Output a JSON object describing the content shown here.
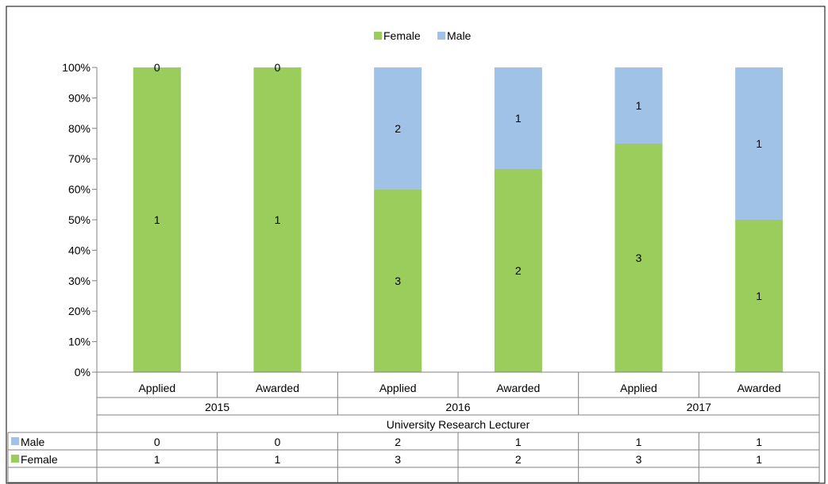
{
  "chart_data": {
    "type": "bar",
    "stacked": "percent",
    "categories": [
      "Applied",
      "Awarded",
      "Applied",
      "Awarded",
      "Applied",
      "Awarded"
    ],
    "groups": [
      "2015",
      "2016",
      "2017"
    ],
    "group_title": "University Research Lecturer",
    "series": [
      {
        "name": "Female",
        "values": [
          1,
          1,
          3,
          2,
          3,
          1
        ],
        "color": "#9ACD5C"
      },
      {
        "name": "Male",
        "values": [
          0,
          0,
          2,
          1,
          1,
          1
        ],
        "color": "#A0C2E6"
      }
    ],
    "y_ticks": [
      "0%",
      "10%",
      "20%",
      "30%",
      "40%",
      "50%",
      "60%",
      "70%",
      "80%",
      "90%",
      "100%"
    ],
    "ylim": [
      0,
      100
    ],
    "legend": "top-center",
    "data_table": true
  }
}
